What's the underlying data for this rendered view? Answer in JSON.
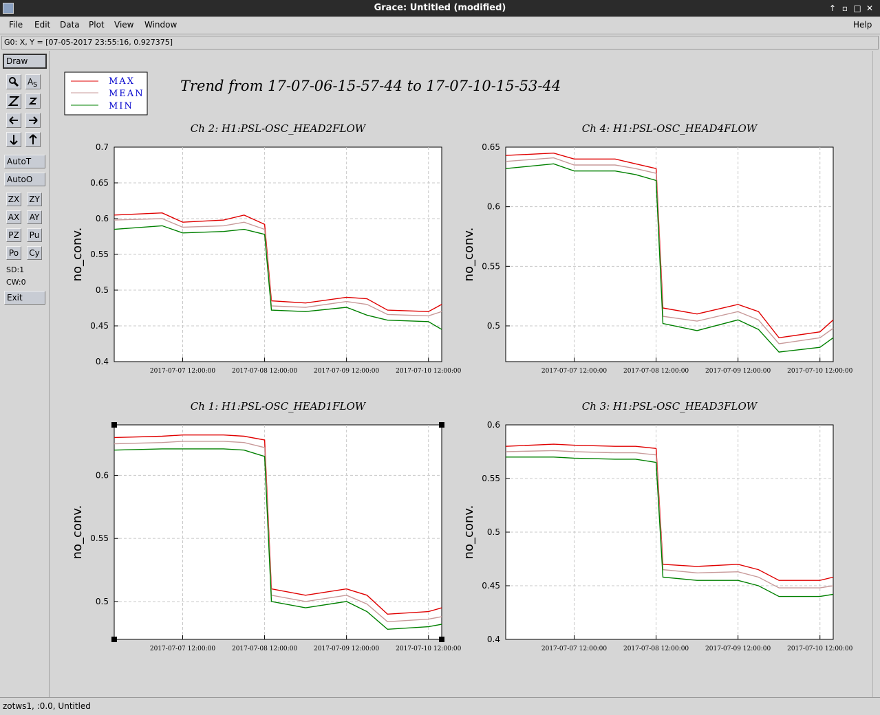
{
  "window": {
    "title": "Grace: Untitled (modified)",
    "controls": [
      "↑",
      "▫",
      "□",
      "✕"
    ]
  },
  "menubar": {
    "items": [
      "File",
      "Edit",
      "Data",
      "Plot",
      "View",
      "Window"
    ],
    "help": "Help"
  },
  "locator": "G0: X, Y = [07-05-2017 23:55:16, 0.927375]",
  "toolbar": {
    "draw": "Draw",
    "autot": "AutoT",
    "autoo": "AutoO",
    "zx": "ZX",
    "zy": "ZY",
    "ax": "AX",
    "ay": "AY",
    "pz": "PZ",
    "pu": "Pu",
    "po": "Po",
    "cy": "Cy",
    "sd": "SD:1",
    "cw": "CW:0",
    "exit": "Exit"
  },
  "statusbar": "zotws1, :0.0, Untitled",
  "figure": {
    "title": "Trend from 17-07-06-15-57-44 to 17-07-10-15-53-44",
    "legend": [
      "MAX",
      "MEAN",
      "MIN"
    ],
    "colors": {
      "max": "#e00000",
      "mean": "#c89a9a",
      "min": "#008000",
      "legend_text": "#0000cc"
    }
  },
  "chart_data": [
    {
      "type": "line",
      "title": "Ch 2: H1:PSL-OSC_HEAD2FLOW",
      "ylabel": "no_conv.",
      "ylim": [
        0.4,
        0.7
      ],
      "yticks": [
        "0.4",
        "0.45",
        "0.5",
        "0.55",
        "0.6",
        "0.65",
        "0.7"
      ],
      "xticks": [
        "2017-07-07 12:00:00",
        "2017-07-08 12:00:00",
        "2017-07-09 12:00:00",
        "2017-07-10 12:00:00"
      ],
      "x": [
        "2017-07-06 15:57",
        "2017-07-07 06:00",
        "2017-07-07 12:00",
        "2017-07-08 00:00",
        "2017-07-08 06:00",
        "2017-07-08 12:00",
        "2017-07-08 14:00",
        "2017-07-09 00:00",
        "2017-07-09 12:00",
        "2017-07-09 18:00",
        "2017-07-10 00:00",
        "2017-07-10 12:00",
        "2017-07-10 15:53"
      ],
      "series": [
        {
          "name": "MAX",
          "values": [
            0.605,
            0.608,
            0.595,
            0.598,
            0.605,
            0.592,
            0.485,
            0.482,
            0.49,
            0.488,
            0.472,
            0.47,
            0.48
          ]
        },
        {
          "name": "MEAN",
          "values": [
            0.598,
            0.6,
            0.588,
            0.59,
            0.595,
            0.585,
            0.478,
            0.476,
            0.484,
            0.48,
            0.466,
            0.464,
            0.47
          ]
        },
        {
          "name": "MIN",
          "values": [
            0.585,
            0.59,
            0.58,
            0.582,
            0.585,
            0.578,
            0.472,
            0.47,
            0.476,
            0.465,
            0.458,
            0.456,
            0.445
          ]
        }
      ]
    },
    {
      "type": "line",
      "title": "Ch 4: H1:PSL-OSC_HEAD4FLOW",
      "ylabel": "no_conv.",
      "ylim": [
        0.47,
        0.65
      ],
      "yticks": [
        "0.5",
        "0.55",
        "0.6",
        "0.65"
      ],
      "xticks": [
        "2017-07-07 12:00:00",
        "2017-07-08 12:00:00",
        "2017-07-09 12:00:00",
        "2017-07-10 12:00:00"
      ],
      "x": [
        "2017-07-06 15:57",
        "2017-07-07 06:00",
        "2017-07-07 12:00",
        "2017-07-08 00:00",
        "2017-07-08 06:00",
        "2017-07-08 12:00",
        "2017-07-08 14:00",
        "2017-07-09 00:00",
        "2017-07-09 12:00",
        "2017-07-09 18:00",
        "2017-07-10 00:00",
        "2017-07-10 12:00",
        "2017-07-10 15:53"
      ],
      "series": [
        {
          "name": "MAX",
          "values": [
            0.643,
            0.645,
            0.64,
            0.64,
            0.636,
            0.632,
            0.515,
            0.51,
            0.518,
            0.512,
            0.49,
            0.495,
            0.505
          ]
        },
        {
          "name": "MEAN",
          "values": [
            0.638,
            0.641,
            0.635,
            0.635,
            0.632,
            0.628,
            0.508,
            0.504,
            0.512,
            0.505,
            0.485,
            0.49,
            0.498
          ]
        },
        {
          "name": "MIN",
          "values": [
            0.632,
            0.636,
            0.63,
            0.63,
            0.627,
            0.622,
            0.502,
            0.496,
            0.505,
            0.497,
            0.478,
            0.482,
            0.49
          ]
        }
      ]
    },
    {
      "type": "line",
      "title": "Ch 1: H1:PSL-OSC_HEAD1FLOW",
      "ylabel": "no_conv.",
      "ylim": [
        0.47,
        0.64
      ],
      "yticks": [
        "0.5",
        "0.55",
        "0.6"
      ],
      "xticks": [
        "2017-07-07 12:00:00",
        "2017-07-08 12:00:00",
        "2017-07-09 12:00:00",
        "2017-07-10 12:00:00"
      ],
      "x": [
        "2017-07-06 15:57",
        "2017-07-07 06:00",
        "2017-07-07 12:00",
        "2017-07-08 00:00",
        "2017-07-08 06:00",
        "2017-07-08 12:00",
        "2017-07-08 14:00",
        "2017-07-09 00:00",
        "2017-07-09 12:00",
        "2017-07-09 18:00",
        "2017-07-10 00:00",
        "2017-07-10 12:00",
        "2017-07-10 15:53"
      ],
      "series": [
        {
          "name": "MAX",
          "values": [
            0.63,
            0.631,
            0.632,
            0.632,
            0.631,
            0.628,
            0.51,
            0.505,
            0.51,
            0.505,
            0.49,
            0.492,
            0.495
          ]
        },
        {
          "name": "MEAN",
          "values": [
            0.625,
            0.626,
            0.627,
            0.627,
            0.626,
            0.622,
            0.505,
            0.5,
            0.505,
            0.498,
            0.484,
            0.486,
            0.488
          ]
        },
        {
          "name": "MIN",
          "values": [
            0.62,
            0.621,
            0.621,
            0.621,
            0.62,
            0.615,
            0.5,
            0.495,
            0.5,
            0.492,
            0.478,
            0.48,
            0.482
          ]
        }
      ]
    },
    {
      "type": "line",
      "title": "Ch 3: H1:PSL-OSC_HEAD3FLOW",
      "ylabel": "no_conv.",
      "ylim": [
        0.4,
        0.6
      ],
      "yticks": [
        "0.4",
        "0.45",
        "0.5",
        "0.55",
        "0.6"
      ],
      "xticks": [
        "2017-07-07 12:00:00",
        "2017-07-08 12:00:00",
        "2017-07-09 12:00:00",
        "2017-07-10 12:00:00"
      ],
      "x": [
        "2017-07-06 15:57",
        "2017-07-07 06:00",
        "2017-07-07 12:00",
        "2017-07-08 00:00",
        "2017-07-08 06:00",
        "2017-07-08 12:00",
        "2017-07-08 14:00",
        "2017-07-09 00:00",
        "2017-07-09 12:00",
        "2017-07-09 18:00",
        "2017-07-10 00:00",
        "2017-07-10 12:00",
        "2017-07-10 15:53"
      ],
      "series": [
        {
          "name": "MAX",
          "values": [
            0.58,
            0.582,
            0.581,
            0.58,
            0.58,
            0.578,
            0.47,
            0.468,
            0.47,
            0.465,
            0.455,
            0.455,
            0.458
          ]
        },
        {
          "name": "MEAN",
          "values": [
            0.575,
            0.576,
            0.575,
            0.574,
            0.574,
            0.572,
            0.465,
            0.462,
            0.463,
            0.458,
            0.448,
            0.448,
            0.45
          ]
        },
        {
          "name": "MIN",
          "values": [
            0.57,
            0.57,
            0.569,
            0.568,
            0.568,
            0.565,
            0.458,
            0.455,
            0.455,
            0.45,
            0.44,
            0.44,
            0.442
          ]
        }
      ]
    }
  ]
}
